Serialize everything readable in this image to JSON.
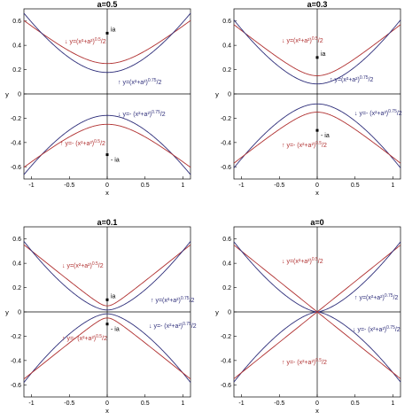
{
  "chart_data": [
    {
      "type": "line",
      "title": "a=0.5",
      "a": 0.5,
      "xlabel": "x",
      "ylabel": "y",
      "xlim": [
        -1.1,
        1.1
      ],
      "ylim": [
        -0.7,
        0.7
      ],
      "xticks": [
        "-1",
        "-0.5",
        "0",
        "0.5",
        "1"
      ],
      "yticks": [
        "0.6",
        "0.4",
        "0.2",
        "0",
        "-0.2",
        "-0.4",
        "-0.6"
      ],
      "series": [
        {
          "name": "y=(x²+a²)^0.5/2",
          "color": "#b03030",
          "formula": "sqrt",
          "sign": 1
        },
        {
          "name": "y=(x²+a²)^0.75/2",
          "color": "#2e2e7a",
          "formula": "p075",
          "sign": 1
        },
        {
          "name": "y=-(x²+a²)^0.75/2",
          "color": "#2e2e7a",
          "formula": "p075",
          "sign": -1
        },
        {
          "name": "y=-(x²+a²)^0.5/2",
          "color": "#b03030",
          "formula": "sqrt",
          "sign": -1
        }
      ],
      "points": [
        {
          "label": "ia",
          "y": 0.5
        },
        {
          "label": "- ia",
          "y": -0.5
        }
      ],
      "annotations": [
        {
          "text": "↓ y=(x²+a²)",
          "sup": "0.5",
          "tail": "/2",
          "color": "#b03030"
        },
        {
          "text": "↑ y=(x²+a²)",
          "sup": "0.75",
          "tail": "/2",
          "color": "#2e2e7a"
        },
        {
          "text": "↓ y=- (x²+a²)",
          "sup": "0.75",
          "tail": "/2",
          "color": "#2e2e7a"
        },
        {
          "text": "↑ y=- (x²+a²)",
          "sup": "0.5",
          "tail": "/2",
          "color": "#b03030"
        }
      ]
    },
    {
      "type": "line",
      "title": "a=0.3",
      "a": 0.3,
      "xlabel": "x",
      "ylabel": "y",
      "xlim": [
        -1.1,
        1.1
      ],
      "ylim": [
        -0.7,
        0.7
      ],
      "xticks": [
        "-1",
        "-0.5",
        "0",
        "0.5",
        "1"
      ],
      "yticks": [
        "0.6",
        "0.4",
        "0.2",
        "0",
        "-0.2",
        "-0.4",
        "-0.6"
      ],
      "series": [
        {
          "name": "y=(x²+a²)^0.5/2",
          "color": "#b03030",
          "formula": "sqrt",
          "sign": 1
        },
        {
          "name": "y=(x²+a²)^0.75/2",
          "color": "#2e2e7a",
          "formula": "p075",
          "sign": 1
        },
        {
          "name": "y=-(x²+a²)^0.75/2",
          "color": "#2e2e7a",
          "formula": "p075",
          "sign": -1
        },
        {
          "name": "y=-(x²+a²)^0.5/2",
          "color": "#b03030",
          "formula": "sqrt",
          "sign": -1
        }
      ],
      "points": [
        {
          "label": "ia",
          "y": 0.3
        },
        {
          "label": "- ia",
          "y": -0.3
        }
      ],
      "annotations": [
        {
          "text": "↓ y=(x²+a²)",
          "sup": "0.5",
          "tail": "/2",
          "color": "#b03030"
        },
        {
          "text": "↑ y=(x²+a²)",
          "sup": "0.75",
          "tail": "/2",
          "color": "#2e2e7a"
        },
        {
          "text": "↓ y=- (x²+a²)",
          "sup": "0.75",
          "tail": "/2",
          "color": "#2e2e7a"
        },
        {
          "text": "↑ y=- (x²+a²)",
          "sup": "0.5",
          "tail": "/2",
          "color": "#b03030"
        }
      ]
    },
    {
      "type": "line",
      "title": "a=0.1",
      "a": 0.1,
      "xlabel": "x",
      "ylabel": "y",
      "xlim": [
        -1.1,
        1.1
      ],
      "ylim": [
        -0.7,
        0.7
      ],
      "xticks": [
        "-1",
        "-0.5",
        "0",
        "0.5",
        "1"
      ],
      "yticks": [
        "0.6",
        "0.4",
        "0.2",
        "0",
        "-0.2",
        "-0.4",
        "-0.6"
      ],
      "series": [
        {
          "name": "y=(x²+a²)^0.5/2",
          "color": "#b03030",
          "formula": "sqrt",
          "sign": 1
        },
        {
          "name": "y=(x²+a²)^0.75/2",
          "color": "#2e2e7a",
          "formula": "p075",
          "sign": 1
        },
        {
          "name": "y=-(x²+a²)^0.75/2",
          "color": "#2e2e7a",
          "formula": "p075",
          "sign": -1
        },
        {
          "name": "y=-(x²+a²)^0.5/2",
          "color": "#b03030",
          "formula": "sqrt",
          "sign": -1
        }
      ],
      "points": [
        {
          "label": "ia",
          "y": 0.1
        },
        {
          "label": "- ia",
          "y": -0.1
        }
      ],
      "annotations": [
        {
          "text": "↓ y=(x²+a²)",
          "sup": "0.5",
          "tail": "/2",
          "color": "#b03030"
        },
        {
          "text": "↑ y=(x²+a²)",
          "sup": "0.75",
          "tail": "/2",
          "color": "#2e2e7a"
        },
        {
          "text": "↓ y=- (x²+a²)",
          "sup": "0.75",
          "tail": "/2",
          "color": "#2e2e7a"
        },
        {
          "text": "↑ y=- (x²+a²)",
          "sup": "0.5",
          "tail": "/2",
          "color": "#b03030"
        }
      ]
    },
    {
      "type": "line",
      "title": "a=0",
      "a": 0,
      "xlabel": "x",
      "ylabel": "y",
      "xlim": [
        -1.1,
        1.1
      ],
      "ylim": [
        -0.7,
        0.7
      ],
      "xticks": [
        "-1",
        "-0.5",
        "0",
        "0.5",
        "1"
      ],
      "yticks": [
        "0.6",
        "0.4",
        "0.2",
        "0",
        "-0.2",
        "-0.4",
        "-0.6"
      ],
      "series": [
        {
          "name": "y=(x²+a²)^0.5/2",
          "color": "#b03030",
          "formula": "sqrt",
          "sign": 1
        },
        {
          "name": "y=(x²+a²)^0.75/2",
          "color": "#2e2e7a",
          "formula": "p075",
          "sign": 1
        },
        {
          "name": "y=-(x²+a²)^0.75/2",
          "color": "#2e2e7a",
          "formula": "p075",
          "sign": -1
        },
        {
          "name": "y=-(x²+a²)^0.5/2",
          "color": "#b03030",
          "formula": "sqrt",
          "sign": -1
        }
      ],
      "points": [],
      "annotations": [
        {
          "text": "↓ y=(x²+a²)",
          "sup": "0.5",
          "tail": "/2",
          "color": "#b03030"
        },
        {
          "text": "↑ y=(x²+a²)",
          "sup": "0.75",
          "tail": "/2",
          "color": "#2e2e7a"
        },
        {
          "text": "↓ y=- (x²+a²)",
          "sup": "0.75",
          "tail": "/2",
          "color": "#2e2e7a"
        },
        {
          "text": "↑ y=- (x²+a²)",
          "sup": "0.5",
          "tail": "/2",
          "color": "#b03030"
        }
      ]
    }
  ]
}
